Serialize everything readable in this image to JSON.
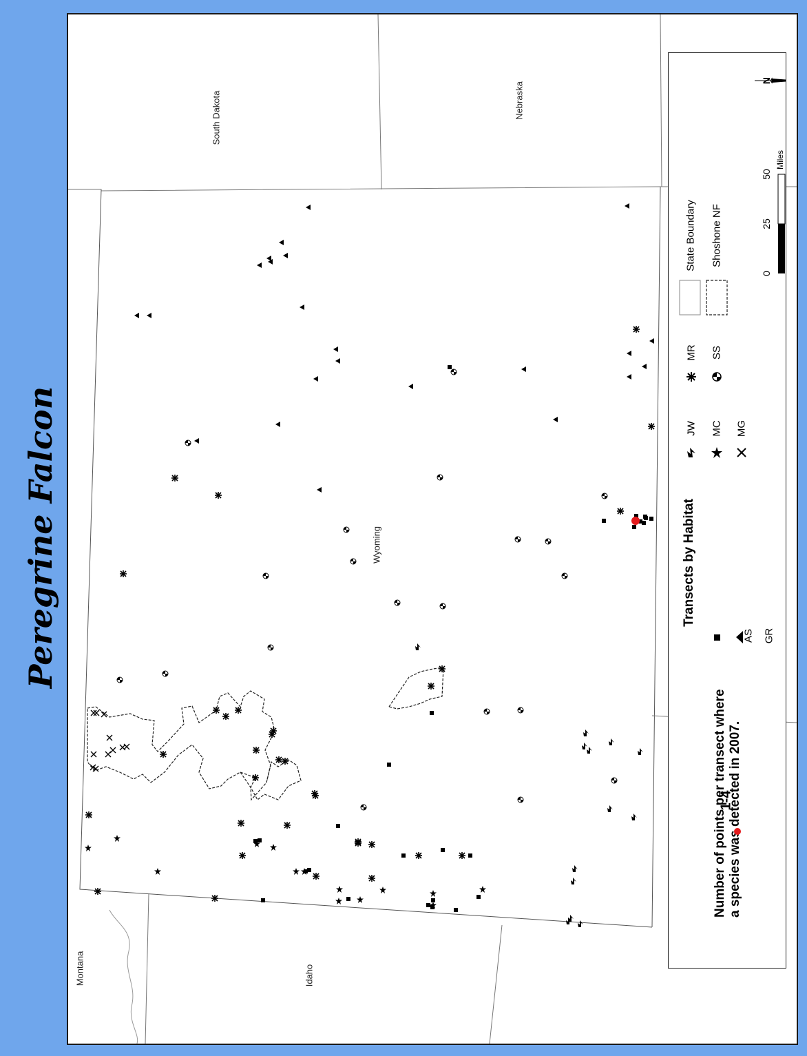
{
  "title": "Peregrine Falcon",
  "states": {
    "south_dakota": "South Dakota",
    "nebraska": "Nebraska",
    "wyoming": "Wyoming",
    "idaho": "Idaho",
    "montana": "Montana"
  },
  "legend": {
    "count_heading": "Number of points per transect where a species was detected in 2007.",
    "count_heading_line1": "Number of points per transect where",
    "count_heading_line2": "a species was detected in 2007.",
    "count_class": "1-4",
    "count_color": "#e31a1c",
    "habitat_heading": "Transects by Habitat",
    "habitats": [
      {
        "code": "AS",
        "symbol": "square"
      },
      {
        "code": "GR",
        "symbol": "triangle"
      },
      {
        "code": "JW",
        "symbol": "lightning"
      },
      {
        "code": "MC",
        "symbol": "star"
      },
      {
        "code": "MG",
        "symbol": "x"
      },
      {
        "code": "MR",
        "symbol": "asterisk"
      },
      {
        "code": "SS",
        "symbol": "half-filled-circle"
      }
    ],
    "boundaries": [
      {
        "label": "State Boundary",
        "style": "solid"
      },
      {
        "label": "Shoshone NF",
        "style": "dashed"
      }
    ]
  },
  "scale_bar": {
    "ticks": [
      "0",
      "25",
      "50"
    ],
    "unit": "Miles"
  },
  "north_arrow": "N",
  "colors": {
    "frame": "#6fa6ec",
    "detection": "#e31a1c"
  }
}
